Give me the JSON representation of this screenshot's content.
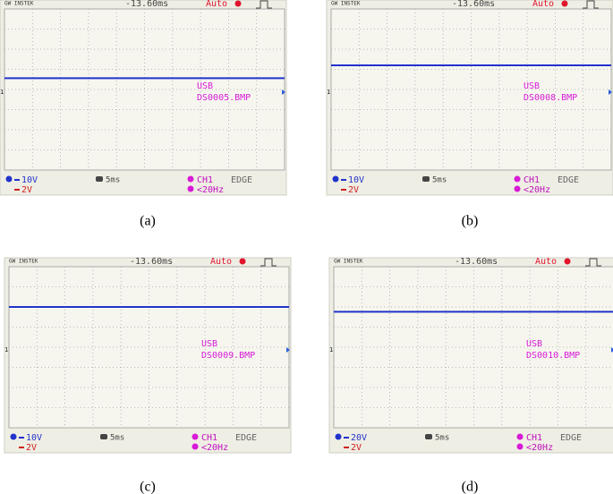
{
  "panels": [
    {
      "caption": "(a)",
      "header": {
        "brand": "GW INSTEK",
        "time_offset": "-13.60ms",
        "trigger_mode": "Auto"
      },
      "overlay": {
        "label": "USB",
        "file": "DS0005.BMP"
      },
      "channel_marker": "1",
      "footer": {
        "ch1_scale": "10V",
        "ch2_scale": "2V",
        "time_scale": "5ms",
        "trigger_source": "CH1",
        "trigger_type": "EDGE",
        "frequency": "<20Hz"
      }
    },
    {
      "caption": "(b)",
      "header": {
        "brand": "GW INSTEK",
        "time_offset": "-13.60ms",
        "trigger_mode": "Auto"
      },
      "overlay": {
        "label": "USB",
        "file": "DS0008.BMP"
      },
      "channel_marker": "1",
      "footer": {
        "ch1_scale": "10V",
        "ch2_scale": "2V",
        "time_scale": "5ms",
        "trigger_source": "CH1",
        "trigger_type": "EDGE",
        "frequency": "<20Hz"
      }
    },
    {
      "caption": "(c)",
      "header": {
        "brand": "GW INSTEK",
        "time_offset": "-13.60ms",
        "trigger_mode": "Auto"
      },
      "overlay": {
        "label": "USB",
        "file": "DS0009.BMP"
      },
      "channel_marker": "1",
      "footer": {
        "ch1_scale": "10V",
        "ch2_scale": "2V",
        "time_scale": "5ms",
        "trigger_source": "CH1",
        "trigger_type": "EDGE",
        "frequency": "<20Hz"
      }
    },
    {
      "caption": "(d)",
      "header": {
        "brand": "GW INSTEK",
        "time_offset": "-13.60ms",
        "trigger_mode": "Auto"
      },
      "overlay": {
        "label": "USB",
        "file": "DS0010.BMP"
      },
      "channel_marker": "1",
      "footer": {
        "ch1_scale": "20V",
        "ch2_scale": "2V",
        "time_scale": "5ms",
        "trigger_source": "CH1",
        "trigger_type": "EDGE",
        "frequency": "<20Hz"
      }
    }
  ]
}
